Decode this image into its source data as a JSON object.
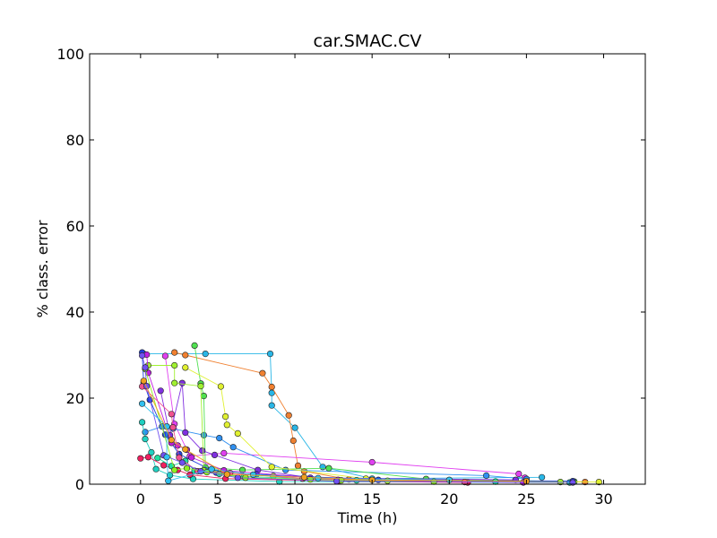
{
  "chart_data": {
    "type": "line",
    "title": "car.SMAC.CV",
    "xlabel": "Time (h)",
    "ylabel": "% class. error",
    "xlim": [
      -3.3,
      32.7
    ],
    "ylim": [
      0,
      100
    ],
    "xticks": [
      0,
      5,
      10,
      15,
      20,
      25,
      30
    ],
    "yticks": [
      0,
      20,
      40,
      60,
      80,
      100
    ],
    "xtick_labels": [
      "0",
      "5",
      "10",
      "15",
      "20",
      "25",
      "30"
    ],
    "ytick_labels": [
      "0",
      "20",
      "40",
      "60",
      "80",
      "100"
    ],
    "grid": false,
    "legend": "none",
    "series": [
      {
        "color": "#29b6e6",
        "points": [
          [
            0.2,
            30.3
          ],
          [
            4.2,
            30.3
          ],
          [
            8.4,
            30.3
          ],
          [
            8.5,
            21.2
          ],
          [
            8.5,
            18.3
          ],
          [
            10.0,
            13.1
          ],
          [
            11.8,
            4.0
          ],
          [
            15.0,
            1.3
          ],
          [
            26.0,
            1.6
          ]
        ]
      },
      {
        "color": "#f08030",
        "points": [
          [
            2.2,
            30.6
          ],
          [
            2.9,
            30.0
          ],
          [
            7.9,
            25.8
          ],
          [
            8.5,
            22.6
          ],
          [
            9.6,
            16.0
          ],
          [
            9.9,
            10.1
          ],
          [
            10.2,
            4.3
          ],
          [
            10.6,
            3.0
          ],
          [
            13.5,
            1.1
          ],
          [
            28.8,
            0.5
          ]
        ]
      },
      {
        "color": "#e040f0",
        "points": [
          [
            1.6,
            29.8
          ],
          [
            2.2,
            14.0
          ],
          [
            3.2,
            6.5
          ],
          [
            5.4,
            7.2
          ],
          [
            15.0,
            5.1
          ],
          [
            24.5,
            2.4
          ],
          [
            24.9,
            1.5
          ]
        ]
      },
      {
        "color": "#3090f0",
        "points": [
          [
            0.3,
            12.1
          ],
          [
            1.4,
            13.4
          ],
          [
            2.1,
            12.9
          ],
          [
            4.1,
            11.4
          ],
          [
            5.1,
            10.7
          ],
          [
            6.0,
            8.6
          ],
          [
            9.4,
            3.3
          ],
          [
            22.4,
            2.0
          ],
          [
            25.0,
            1.2
          ]
        ]
      },
      {
        "color": "#50e050",
        "points": [
          [
            3.5,
            32.2
          ],
          [
            3.9,
            23.4
          ],
          [
            4.1,
            20.5
          ],
          [
            4.2,
            3.9
          ],
          [
            6.6,
            3.3
          ],
          [
            12.2,
            3.7
          ],
          [
            18.5,
            1.2
          ],
          [
            28.1,
            0.6
          ]
        ]
      },
      {
        "color": "#e0f030",
        "points": [
          [
            2.9,
            27.1
          ],
          [
            5.2,
            22.7
          ],
          [
            5.5,
            15.7
          ],
          [
            5.6,
            13.8
          ],
          [
            6.3,
            11.8
          ],
          [
            8.5,
            4.0
          ],
          [
            14.6,
            1.3
          ],
          [
            29.7,
            0.5
          ]
        ]
      },
      {
        "color": "#20d0c0",
        "points": [
          [
            0.1,
            14.4
          ],
          [
            0.3,
            10.5
          ],
          [
            0.7,
            7.4
          ],
          [
            1.0,
            3.5
          ],
          [
            1.9,
            2.1
          ],
          [
            3.4,
            1.2
          ],
          [
            9.0,
            0.6
          ],
          [
            27.8,
            0.4
          ]
        ]
      },
      {
        "color": "#8030e0",
        "points": [
          [
            1.3,
            21.7
          ],
          [
            1.9,
            11.4
          ],
          [
            2.7,
            23.5
          ],
          [
            2.9,
            12.0
          ],
          [
            4.0,
            7.8
          ],
          [
            4.8,
            6.8
          ],
          [
            7.6,
            3.3
          ],
          [
            11.0,
            1.5
          ],
          [
            24.3,
            1.0
          ]
        ]
      },
      {
        "color": "#f02060",
        "points": [
          [
            0.0,
            6.0
          ],
          [
            0.5,
            6.3
          ],
          [
            1.5,
            4.4
          ],
          [
            2.4,
            3.3
          ],
          [
            3.2,
            2.2
          ],
          [
            5.5,
            1.3
          ],
          [
            12.8,
            0.7
          ],
          [
            21.2,
            0.4
          ]
        ]
      },
      {
        "color": "#2040e0",
        "points": [
          [
            0.1,
            30.6
          ],
          [
            0.2,
            23.6
          ],
          [
            0.6,
            19.6
          ],
          [
            1.6,
            11.5
          ],
          [
            2.5,
            7.0
          ],
          [
            4.9,
            2.7
          ],
          [
            7.5,
            2.3
          ],
          [
            15.4,
            1.0
          ],
          [
            28.0,
            0.7
          ]
        ]
      },
      {
        "color": "#a0f030",
        "points": [
          [
            0.5,
            27.6
          ],
          [
            2.2,
            27.6
          ],
          [
            2.2,
            23.5
          ],
          [
            3.9,
            22.8
          ],
          [
            4.1,
            3.2
          ],
          [
            8.6,
            1.9
          ],
          [
            16.0,
            0.8
          ],
          [
            27.2,
            0.5
          ]
        ]
      },
      {
        "color": "#20e0a0",
        "points": [
          [
            1.1,
            6.1
          ],
          [
            2.0,
            4.2
          ],
          [
            2.9,
            5.4
          ],
          [
            3.5,
            3.1
          ],
          [
            5.1,
            2.4
          ],
          [
            6.7,
            1.8
          ],
          [
            14.0,
            0.9
          ],
          [
            23.0,
            0.6
          ]
        ]
      },
      {
        "color": "#c020e0",
        "points": [
          [
            0.4,
            30.1
          ],
          [
            0.5,
            25.9
          ],
          [
            2.0,
            9.6
          ],
          [
            2.4,
            9.0
          ],
          [
            3.0,
            8.0
          ],
          [
            3.3,
            6.2
          ],
          [
            5.4,
            3.2
          ],
          [
            12.8,
            1.0
          ],
          [
            24.8,
            0.4
          ]
        ]
      },
      {
        "color": "#f05090",
        "points": [
          [
            0.1,
            22.7
          ],
          [
            2.0,
            16.3
          ],
          [
            2.1,
            13.2
          ],
          [
            2.5,
            6.2
          ],
          [
            3.7,
            3.0
          ],
          [
            5.8,
            2.6
          ],
          [
            10.5,
            1.3
          ],
          [
            21.0,
            0.5
          ]
        ]
      },
      {
        "color": "#90f020",
        "points": [
          [
            0.3,
            26.8
          ],
          [
            2.2,
            3.3
          ],
          [
            3.0,
            3.7
          ],
          [
            4.3,
            2.8
          ],
          [
            6.8,
            1.5
          ],
          [
            11.0,
            1.1
          ],
          [
            13.0,
            0.9
          ],
          [
            19.0,
            0.6
          ]
        ]
      },
      {
        "color": "#7050f0",
        "points": [
          [
            0.1,
            29.9
          ],
          [
            0.3,
            27.1
          ],
          [
            0.4,
            22.8
          ],
          [
            1.5,
            6.7
          ],
          [
            2.7,
            5.0
          ],
          [
            3.9,
            3.0
          ],
          [
            6.3,
            1.5
          ],
          [
            12.7,
            0.7
          ],
          [
            28.0,
            0.4
          ]
        ]
      },
      {
        "color": "#30c0f0",
        "points": [
          [
            0.1,
            18.7
          ],
          [
            1.7,
            13.4
          ],
          [
            1.7,
            6.3
          ],
          [
            1.8,
            0.8
          ],
          [
            4.6,
            3.5
          ],
          [
            7.3,
            2.2
          ],
          [
            11.5,
            1.4
          ],
          [
            20.0,
            1.0
          ]
        ]
      },
      {
        "color": "#f0a020",
        "points": [
          [
            0.2,
            24.0
          ],
          [
            2.0,
            10.3
          ],
          [
            2.9,
            8.1
          ],
          [
            5.6,
            2.3
          ],
          [
            10.6,
            1.6
          ],
          [
            15.0,
            1.0
          ],
          [
            25.0,
            0.7
          ]
        ]
      }
    ]
  }
}
